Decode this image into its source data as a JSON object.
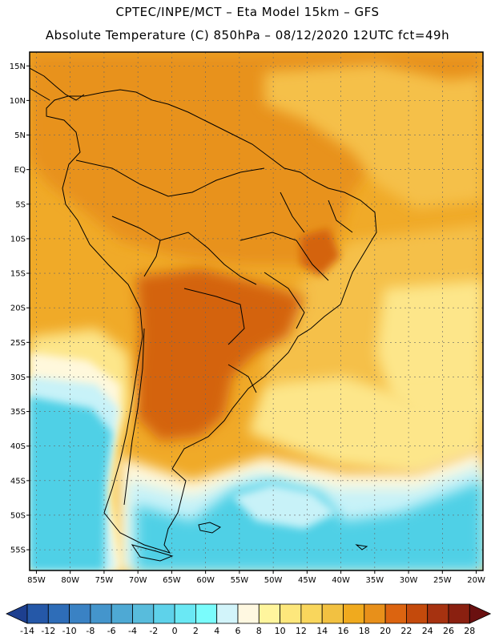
{
  "header": {
    "line1": "CPTEC/INPE/MCT –  Eta Model 15km – GFS",
    "line2": "Absolute Temperature (C) 850hPa – 08/12/2020 12UTC fct=49h"
  },
  "map": {
    "variable": "Absolute Temperature",
    "units": "C",
    "level": "850hPa",
    "lon_range": [
      -86,
      -19
    ],
    "lat_range": [
      -58,
      17
    ],
    "lat_ticks": [
      "15N",
      "10N",
      "5N",
      "EQ",
      "5S",
      "10S",
      "15S",
      "20S",
      "25S",
      "30S",
      "35S",
      "40S",
      "45S",
      "50S",
      "55S"
    ],
    "lon_ticks": [
      "85W",
      "80W",
      "75W",
      "70W",
      "65W",
      "60W",
      "55W",
      "50W",
      "45W",
      "40W",
      "35W",
      "30W",
      "25W",
      "20W"
    ],
    "colors": {
      "cold_deep": "#1e4f99",
      "cyan": "#4fd0e6",
      "light_cyan": "#c8f2f8",
      "cream": "#fff8dc",
      "pale_yellow": "#fde68a",
      "gold": "#f5c04a",
      "orange_yellow": "#f0aa28",
      "orange": "#e8921c",
      "dark_orange": "#d4640e",
      "coastline": "#000000",
      "grid": "#666666"
    }
  },
  "colorbar": {
    "labels": [
      "-14",
      "-12",
      "-10",
      "-8",
      "-6",
      "-4",
      "-2",
      "0",
      "2",
      "4",
      "6",
      "8",
      "10",
      "12",
      "14",
      "16",
      "18",
      "20",
      "22",
      "24",
      "26",
      "28"
    ],
    "colors": [
      "#1d3f8f",
      "#2558a8",
      "#2e6db8",
      "#3a82c4",
      "#4495cc",
      "#4ea9d4",
      "#58bcdc",
      "#5ed2ea",
      "#6ae8f4",
      "#7afcfc",
      "#d2f4fa",
      "#fff8e1",
      "#fff59d",
      "#fde77c",
      "#f9d65c",
      "#f2c141",
      "#f0aa1e",
      "#e8901a",
      "#dc6410",
      "#c44a0c",
      "#a63210",
      "#8a2010",
      "#6a1010"
    ]
  }
}
